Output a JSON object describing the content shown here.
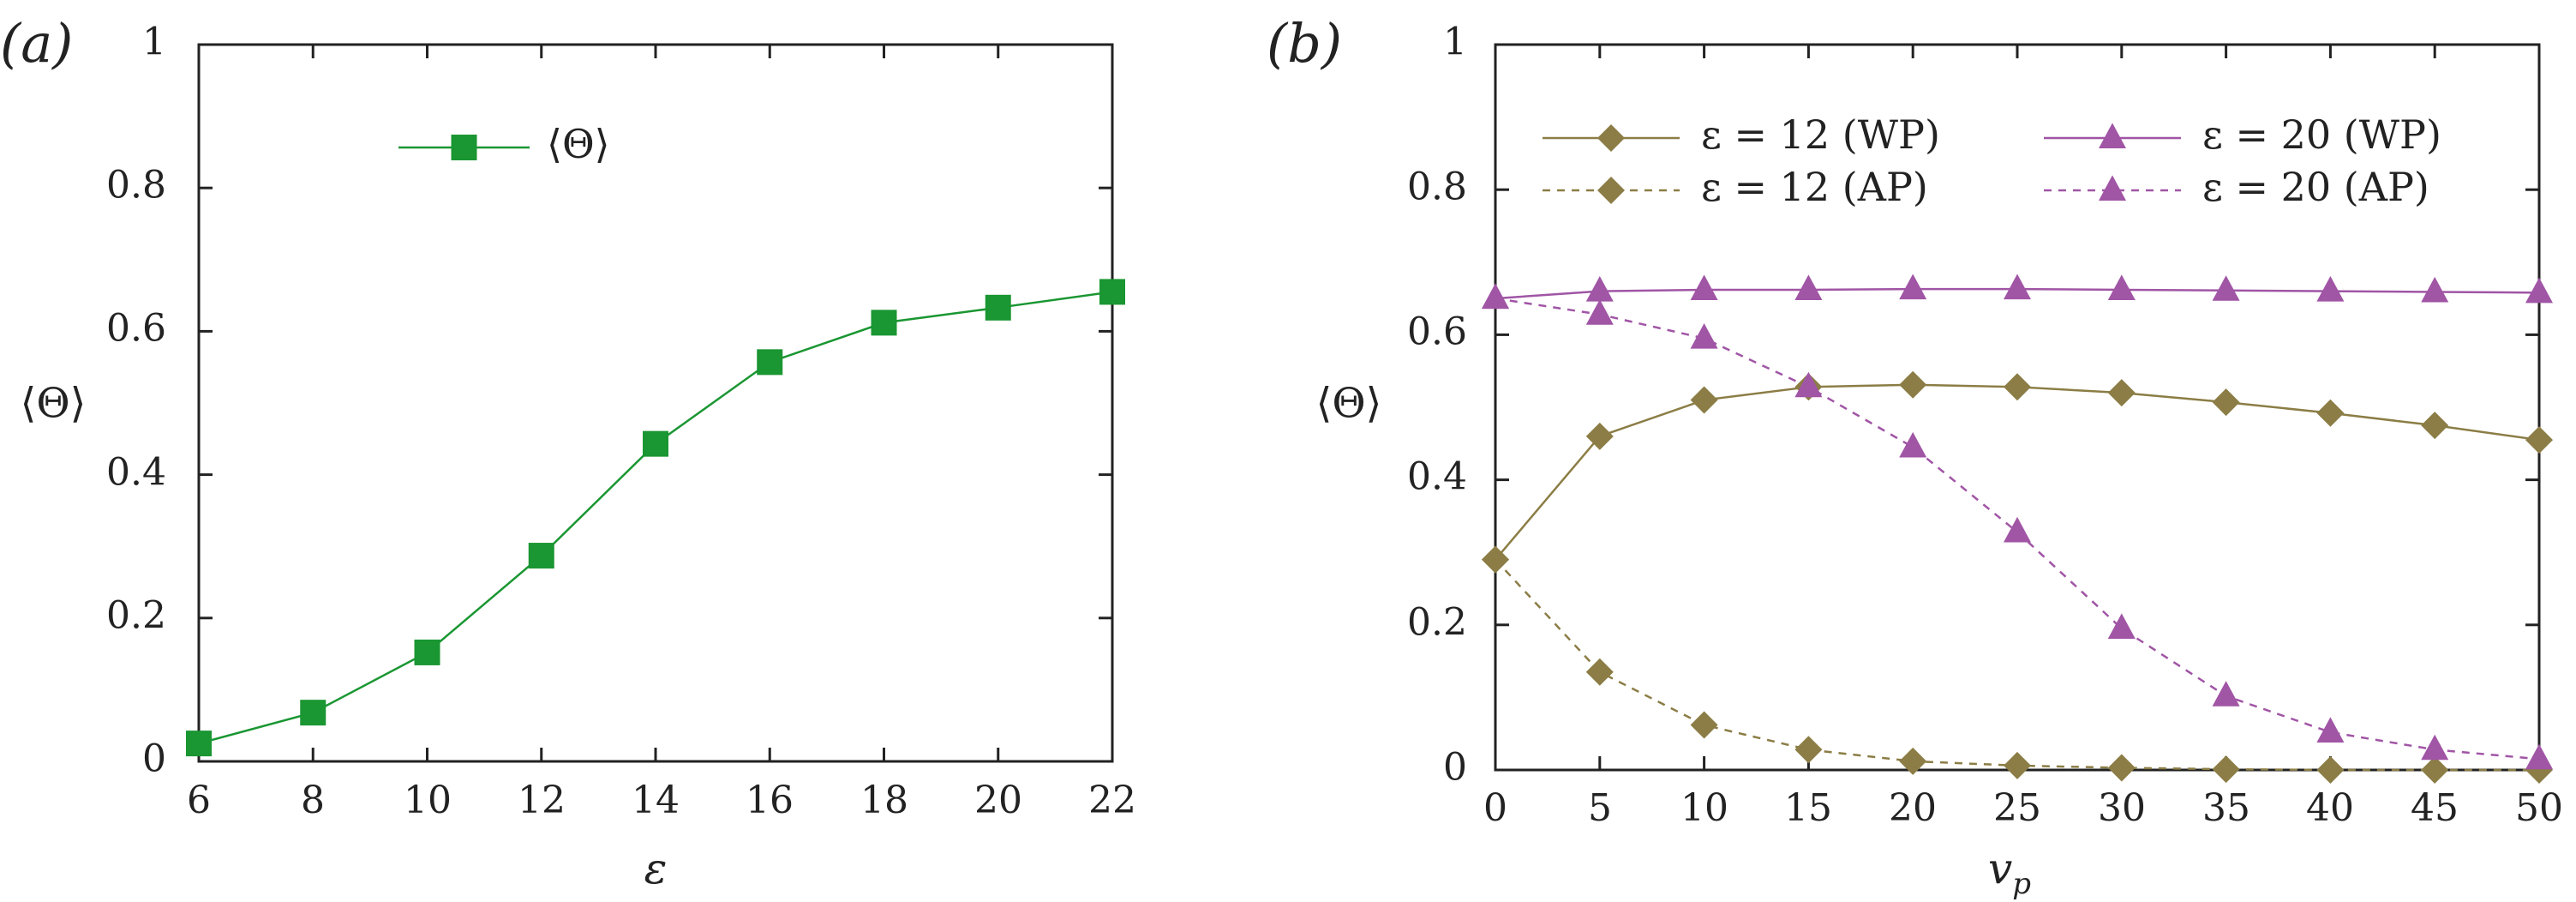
{
  "chart_data": [
    {
      "type": "line",
      "panel_label": "(a)",
      "xlabel": "ε",
      "ylabel": "⟨Θ⟩",
      "xlim": [
        6,
        22
      ],
      "ylim": [
        0,
        1
      ],
      "xticks": [
        "6",
        "8",
        "10",
        "12",
        "14",
        "16",
        "18",
        "20",
        "22"
      ],
      "yticks": [
        "0",
        "0.2",
        "0.4",
        "0.6",
        "0.8",
        "1"
      ],
      "legend_position": "top-center",
      "series": [
        {
          "name": "⟨Θ⟩",
          "color": "#1a9632",
          "marker": "square",
          "line": "solid",
          "x": [
            6,
            8,
            10,
            12,
            14,
            16,
            18,
            20,
            22
          ],
          "y": [
            0.025,
            0.068,
            0.152,
            0.287,
            0.443,
            0.557,
            0.612,
            0.633,
            0.655
          ]
        }
      ]
    },
    {
      "type": "line",
      "panel_label": "(b)",
      "xlabel": "v_p",
      "xlabel_main": "v",
      "xlabel_sub": "p",
      "ylabel": "⟨Θ⟩",
      "xlim": [
        0,
        50
      ],
      "ylim": [
        0,
        1
      ],
      "xticks": [
        "0",
        "5",
        "10",
        "15",
        "20",
        "25",
        "30",
        "35",
        "40",
        "45",
        "50"
      ],
      "yticks": [
        "0",
        "0.2",
        "0.4",
        "0.6",
        "0.8",
        "1"
      ],
      "legend_position": "top",
      "series": [
        {
          "name": "ε = 12 (WP)",
          "color": "#8b7d45",
          "marker": "diamond",
          "line": "solid",
          "x": [
            0,
            5,
            10,
            15,
            20,
            25,
            30,
            35,
            40,
            45,
            50
          ],
          "y": [
            0.29,
            0.46,
            0.51,
            0.528,
            0.531,
            0.528,
            0.52,
            0.507,
            0.492,
            0.475,
            0.455
          ]
        },
        {
          "name": "ε = 12 (AP)",
          "color": "#8b7d45",
          "marker": "diamond",
          "line": "dashed",
          "x": [
            0,
            5,
            10,
            15,
            20,
            25,
            30,
            35,
            40,
            45,
            50
          ],
          "y": [
            0.29,
            0.135,
            0.062,
            0.028,
            0.012,
            0.006,
            0.003,
            0.001,
            0.0,
            0.0,
            0.0
          ]
        },
        {
          "name": "ε = 20 (WP)",
          "color": "#a055a5",
          "marker": "triangle",
          "line": "solid",
          "x": [
            0,
            5,
            10,
            15,
            20,
            25,
            30,
            35,
            40,
            45,
            50
          ],
          "y": [
            0.65,
            0.66,
            0.662,
            0.662,
            0.663,
            0.663,
            0.662,
            0.661,
            0.66,
            0.659,
            0.658
          ]
        },
        {
          "name": "ε = 20 (AP)",
          "color": "#a055a5",
          "marker": "triangle",
          "line": "dashed",
          "x": [
            0,
            5,
            10,
            15,
            20,
            25,
            30,
            35,
            40,
            45,
            50
          ],
          "y": [
            0.65,
            0.628,
            0.595,
            0.528,
            0.445,
            0.328,
            0.195,
            0.102,
            0.052,
            0.028,
            0.015
          ]
        }
      ]
    }
  ]
}
